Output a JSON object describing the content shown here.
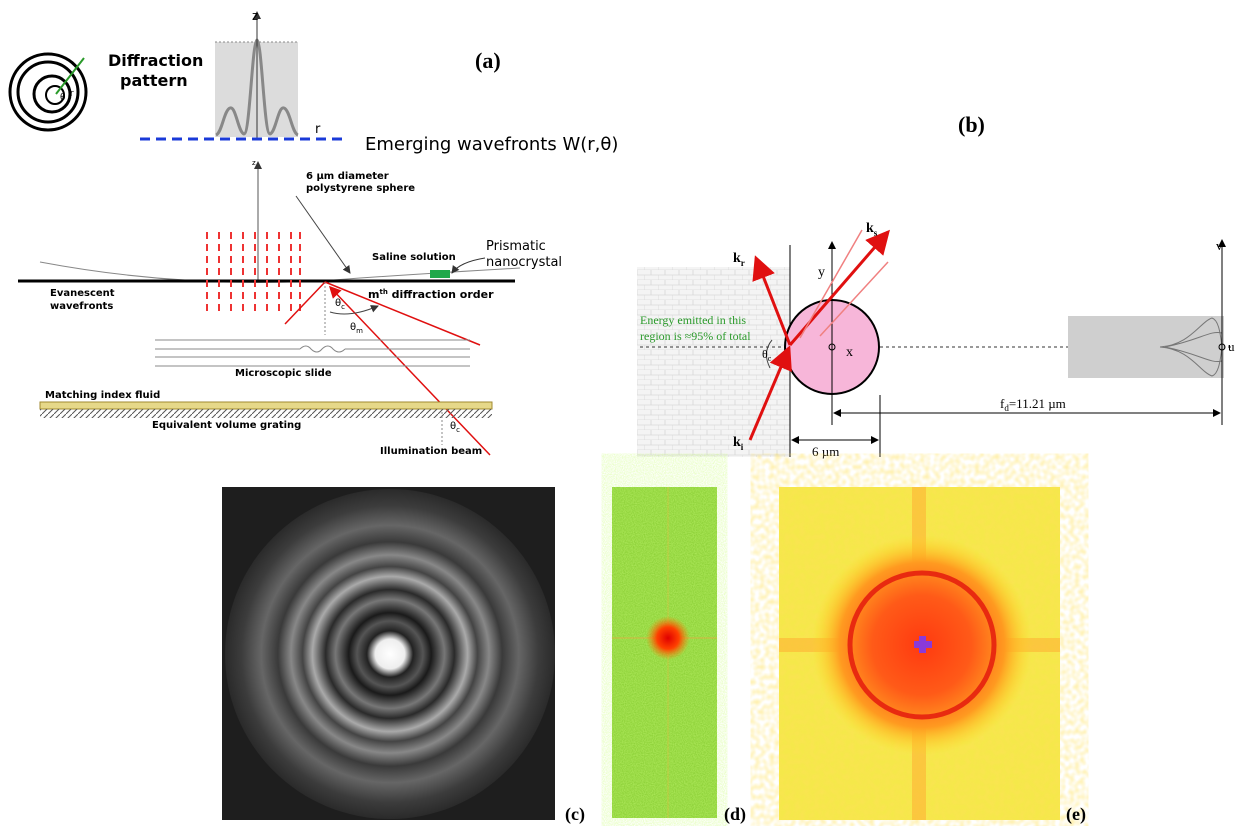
{
  "panel_a": {
    "label": "(a)",
    "diffraction_pattern": [
      "Diffraction",
      "pattern"
    ],
    "ring_labels": [
      "θ",
      "r"
    ],
    "plot_axes": {
      "z": "z",
      "r": "r"
    },
    "wavefront_label": "Emerging wavefronts W(r,θ)",
    "small_axis": "z",
    "sphere_label": [
      "6 µm diameter",
      "polystyrene sphere"
    ],
    "saline": "Saline solution",
    "nanocrystal": [
      "Prismatic",
      "nanocrystal"
    ],
    "evanescent": [
      "Evanescent",
      "wavefronts"
    ],
    "order": {
      "base": "m",
      "sup": "th",
      "rest": " diffraction order"
    },
    "angles": [
      {
        "base": "θ",
        "sub": "c"
      },
      {
        "base": "θ",
        "sub": "m"
      },
      {
        "base": "θ",
        "sub": "c"
      }
    ],
    "slide": "Microscopic slide",
    "fluid": "Matching index fluid",
    "grating": "Equivalent volume grating",
    "beam": "Illumination beam"
  },
  "panel_b": {
    "label": "(b)",
    "kr": {
      "base": "k",
      "sub": "r"
    },
    "ks": {
      "base": "k",
      "sub": "s"
    },
    "ki": {
      "base": "k",
      "sub": "i"
    },
    "axes": {
      "y": "y",
      "x": "x",
      "v": "v",
      "u": "u"
    },
    "energy_note": [
      "Energy emitted in this",
      "region is ≈95% of total"
    ],
    "angle": {
      "base": "θ",
      "sub": "c"
    },
    "focal": {
      "base": "f",
      "sub": "d",
      "rest": "=11.21 µm"
    },
    "diameter": "6 µm"
  },
  "panel_c": {
    "label": "(c)"
  },
  "panel_d": {
    "label": "(d)"
  },
  "panel_e": {
    "label": "(e)"
  }
}
